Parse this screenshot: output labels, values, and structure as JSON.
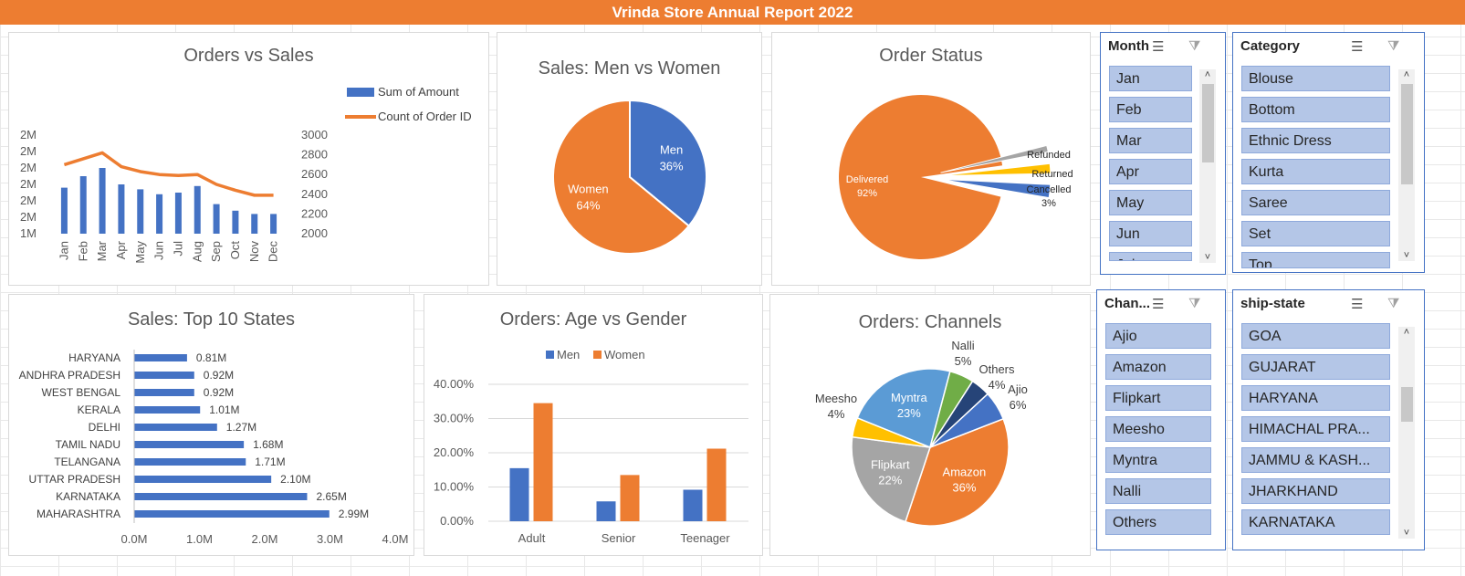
{
  "banner": {
    "title": "Vrinda Store Annual Report 2022"
  },
  "colors": {
    "blue": "#4472c4",
    "orange": "#ed7d31",
    "gray": "#a5a5a5",
    "yellow": "#ffc000",
    "lightblue": "#5b9bd5",
    "green": "#70ad47",
    "navy": "#264478",
    "slicer_item": "#b4c6e7"
  },
  "orders_vs_sales": {
    "title": "Orders vs Sales",
    "legend": [
      "Sum of Amount",
      "Count of Order ID"
    ],
    "left_ticks": [
      "2M",
      "2M",
      "2M",
      "2M",
      "2M",
      "2M",
      "1M"
    ],
    "right_ticks": [
      "3000",
      "2800",
      "2600",
      "2400",
      "2200",
      "2000"
    ]
  },
  "sales_gender": {
    "title": "Sales: Men vs Women"
  },
  "order_status": {
    "title": "Order Status"
  },
  "top_states": {
    "title": "Sales: Top 10 States"
  },
  "age_gender": {
    "title": "Orders: Age vs Gender",
    "legend": [
      "Men",
      "Women"
    ]
  },
  "channels": {
    "title": "Orders: Channels"
  },
  "chart_data": [
    {
      "type": "bar",
      "title": "Orders vs Sales",
      "categories": [
        "Jan",
        "Feb",
        "Mar",
        "Apr",
        "May",
        "Jun",
        "Jul",
        "Aug",
        "Sep",
        "Oct",
        "Nov",
        "Dec"
      ],
      "series": [
        {
          "name": "Sum of Amount",
          "type": "bar",
          "axis": "left",
          "values": [
            1.78,
            1.85,
            1.9,
            1.8,
            1.77,
            1.74,
            1.75,
            1.79,
            1.68,
            1.64,
            1.62,
            1.62
          ]
        },
        {
          "name": "Count of Order ID",
          "type": "line",
          "axis": "right",
          "values": [
            2700,
            2760,
            2820,
            2680,
            2630,
            2600,
            2590,
            2600,
            2500,
            2440,
            2390,
            2390
          ]
        }
      ],
      "ylim_left": [
        1.5,
        2.1
      ],
      "ylim_right": [
        2000,
        3000
      ],
      "legend": "top-right"
    },
    {
      "type": "pie",
      "title": "Sales: Men vs Women",
      "categories": [
        "Men",
        "Women"
      ],
      "values": [
        36,
        64
      ],
      "labels": [
        "36%",
        "64%"
      ]
    },
    {
      "type": "pie",
      "title": "Order Status",
      "categories": [
        "Delivered",
        "Refunded",
        "Returned",
        "Cancelled"
      ],
      "values": [
        92,
        1,
        2,
        3
      ],
      "labels": [
        "92%",
        "",
        "",
        "3%"
      ]
    },
    {
      "type": "bar",
      "title": "Sales: Top 10 States",
      "orientation": "horizontal",
      "categories": [
        "HARYANA",
        "ANDHRA PRADESH",
        "WEST BENGAL",
        "KERALA",
        "DELHI",
        "TAMIL NADU",
        "TELANGANA",
        "UTTAR PRADESH",
        "KARNATAKA",
        "MAHARASHTRA"
      ],
      "values": [
        0.81,
        0.92,
        0.92,
        1.01,
        1.27,
        1.68,
        1.71,
        2.1,
        2.65,
        2.99
      ],
      "data_labels": [
        "0.81M",
        "0.92M",
        "0.92M",
        "1.01M",
        "1.27M",
        "1.68M",
        "1.71M",
        "2.10M",
        "2.65M",
        "2.99M"
      ],
      "x_ticks": [
        "0.0M",
        "1.0M",
        "2.0M",
        "3.0M",
        "4.0M"
      ],
      "xlim": [
        0,
        4
      ]
    },
    {
      "type": "bar",
      "title": "Orders: Age vs Gender",
      "categories": [
        "Adult",
        "Senior",
        "Teenager"
      ],
      "series": [
        {
          "name": "Men",
          "values": [
            15.5,
            5.8,
            9.2
          ]
        },
        {
          "name": "Women",
          "values": [
            34.5,
            13.5,
            21.2
          ]
        }
      ],
      "y_ticks": [
        "0.00%",
        "10.00%",
        "20.00%",
        "30.00%",
        "40.00%"
      ],
      "ylim": [
        0,
        40
      ],
      "legend": "top"
    },
    {
      "type": "pie",
      "title": "Orders: Channels",
      "categories": [
        "Amazon",
        "Flipkart",
        "Meesho",
        "Myntra",
        "Nalli",
        "Others",
        "Ajio"
      ],
      "values": [
        36,
        22,
        4,
        23,
        5,
        4,
        6
      ],
      "labels": [
        "36%",
        "22%",
        "4%",
        "23%",
        "5%",
        "4%",
        "6%"
      ]
    }
  ],
  "slicers": {
    "month": {
      "title": "Month",
      "items": [
        "Jan",
        "Feb",
        "Mar",
        "Apr",
        "May",
        "Jun",
        "Jul"
      ]
    },
    "category": {
      "title": "Category",
      "items": [
        "Blouse",
        "Bottom",
        "Ethnic Dress",
        "Kurta",
        "Saree",
        "Set",
        "Top"
      ]
    },
    "channel": {
      "title": "Chan...",
      "items": [
        "Ajio",
        "Amazon",
        "Flipkart",
        "Meesho",
        "Myntra",
        "Nalli",
        "Others"
      ]
    },
    "state": {
      "title": "ship-state",
      "items": [
        "GOA",
        "GUJARAT",
        "HARYANA",
        "HIMACHAL PRA...",
        "JAMMU & KASH...",
        "JHARKHAND",
        "KARNATAKA"
      ]
    }
  }
}
